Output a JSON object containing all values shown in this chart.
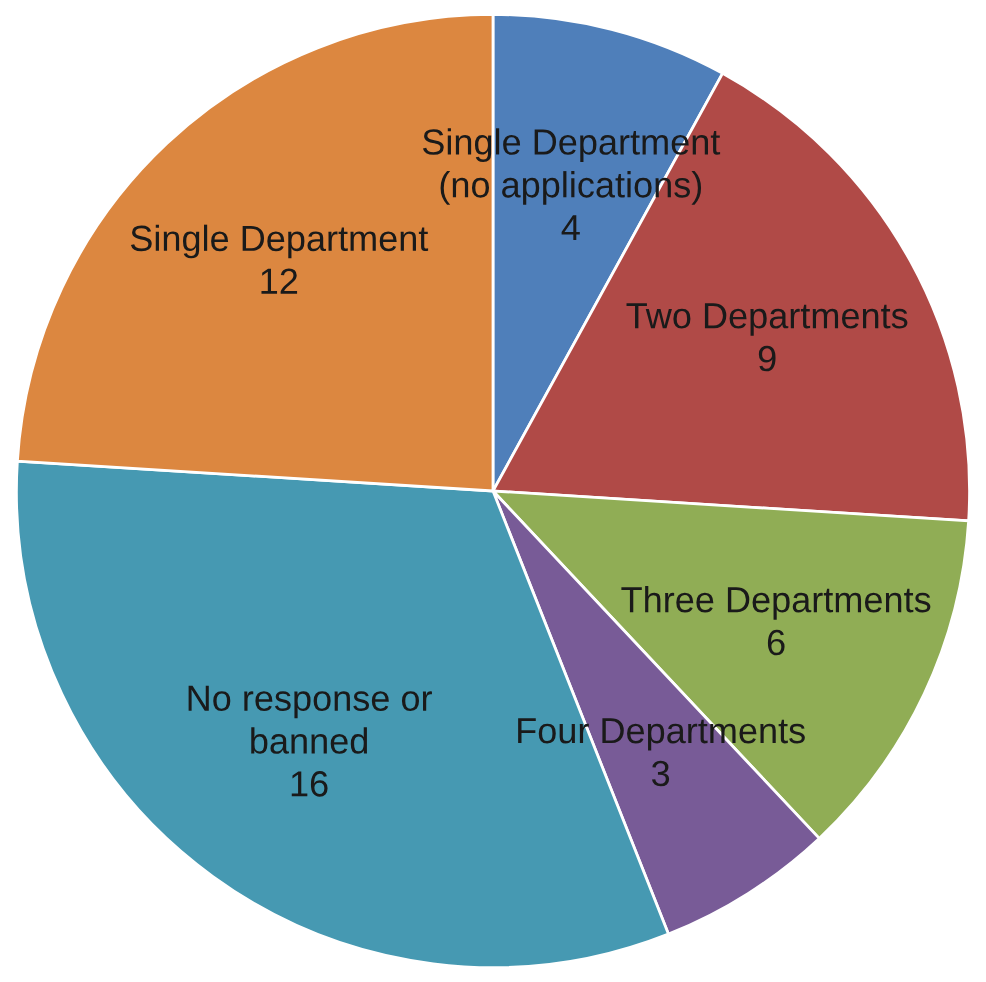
{
  "chart_data": {
    "type": "pie",
    "categories": [
      "Single Department\n(no applications)",
      "Two Departments",
      "Three Departments",
      "Four Departments",
      "No response or\nbanned",
      "Single Department"
    ],
    "values": [
      4,
      9,
      6,
      3,
      16,
      12
    ],
    "colors": [
      "#4f7fba",
      "#b04a47",
      "#90ad55",
      "#785b97",
      "#4699b2",
      "#dc8740"
    ],
    "data_labels": true,
    "legend": false
  }
}
